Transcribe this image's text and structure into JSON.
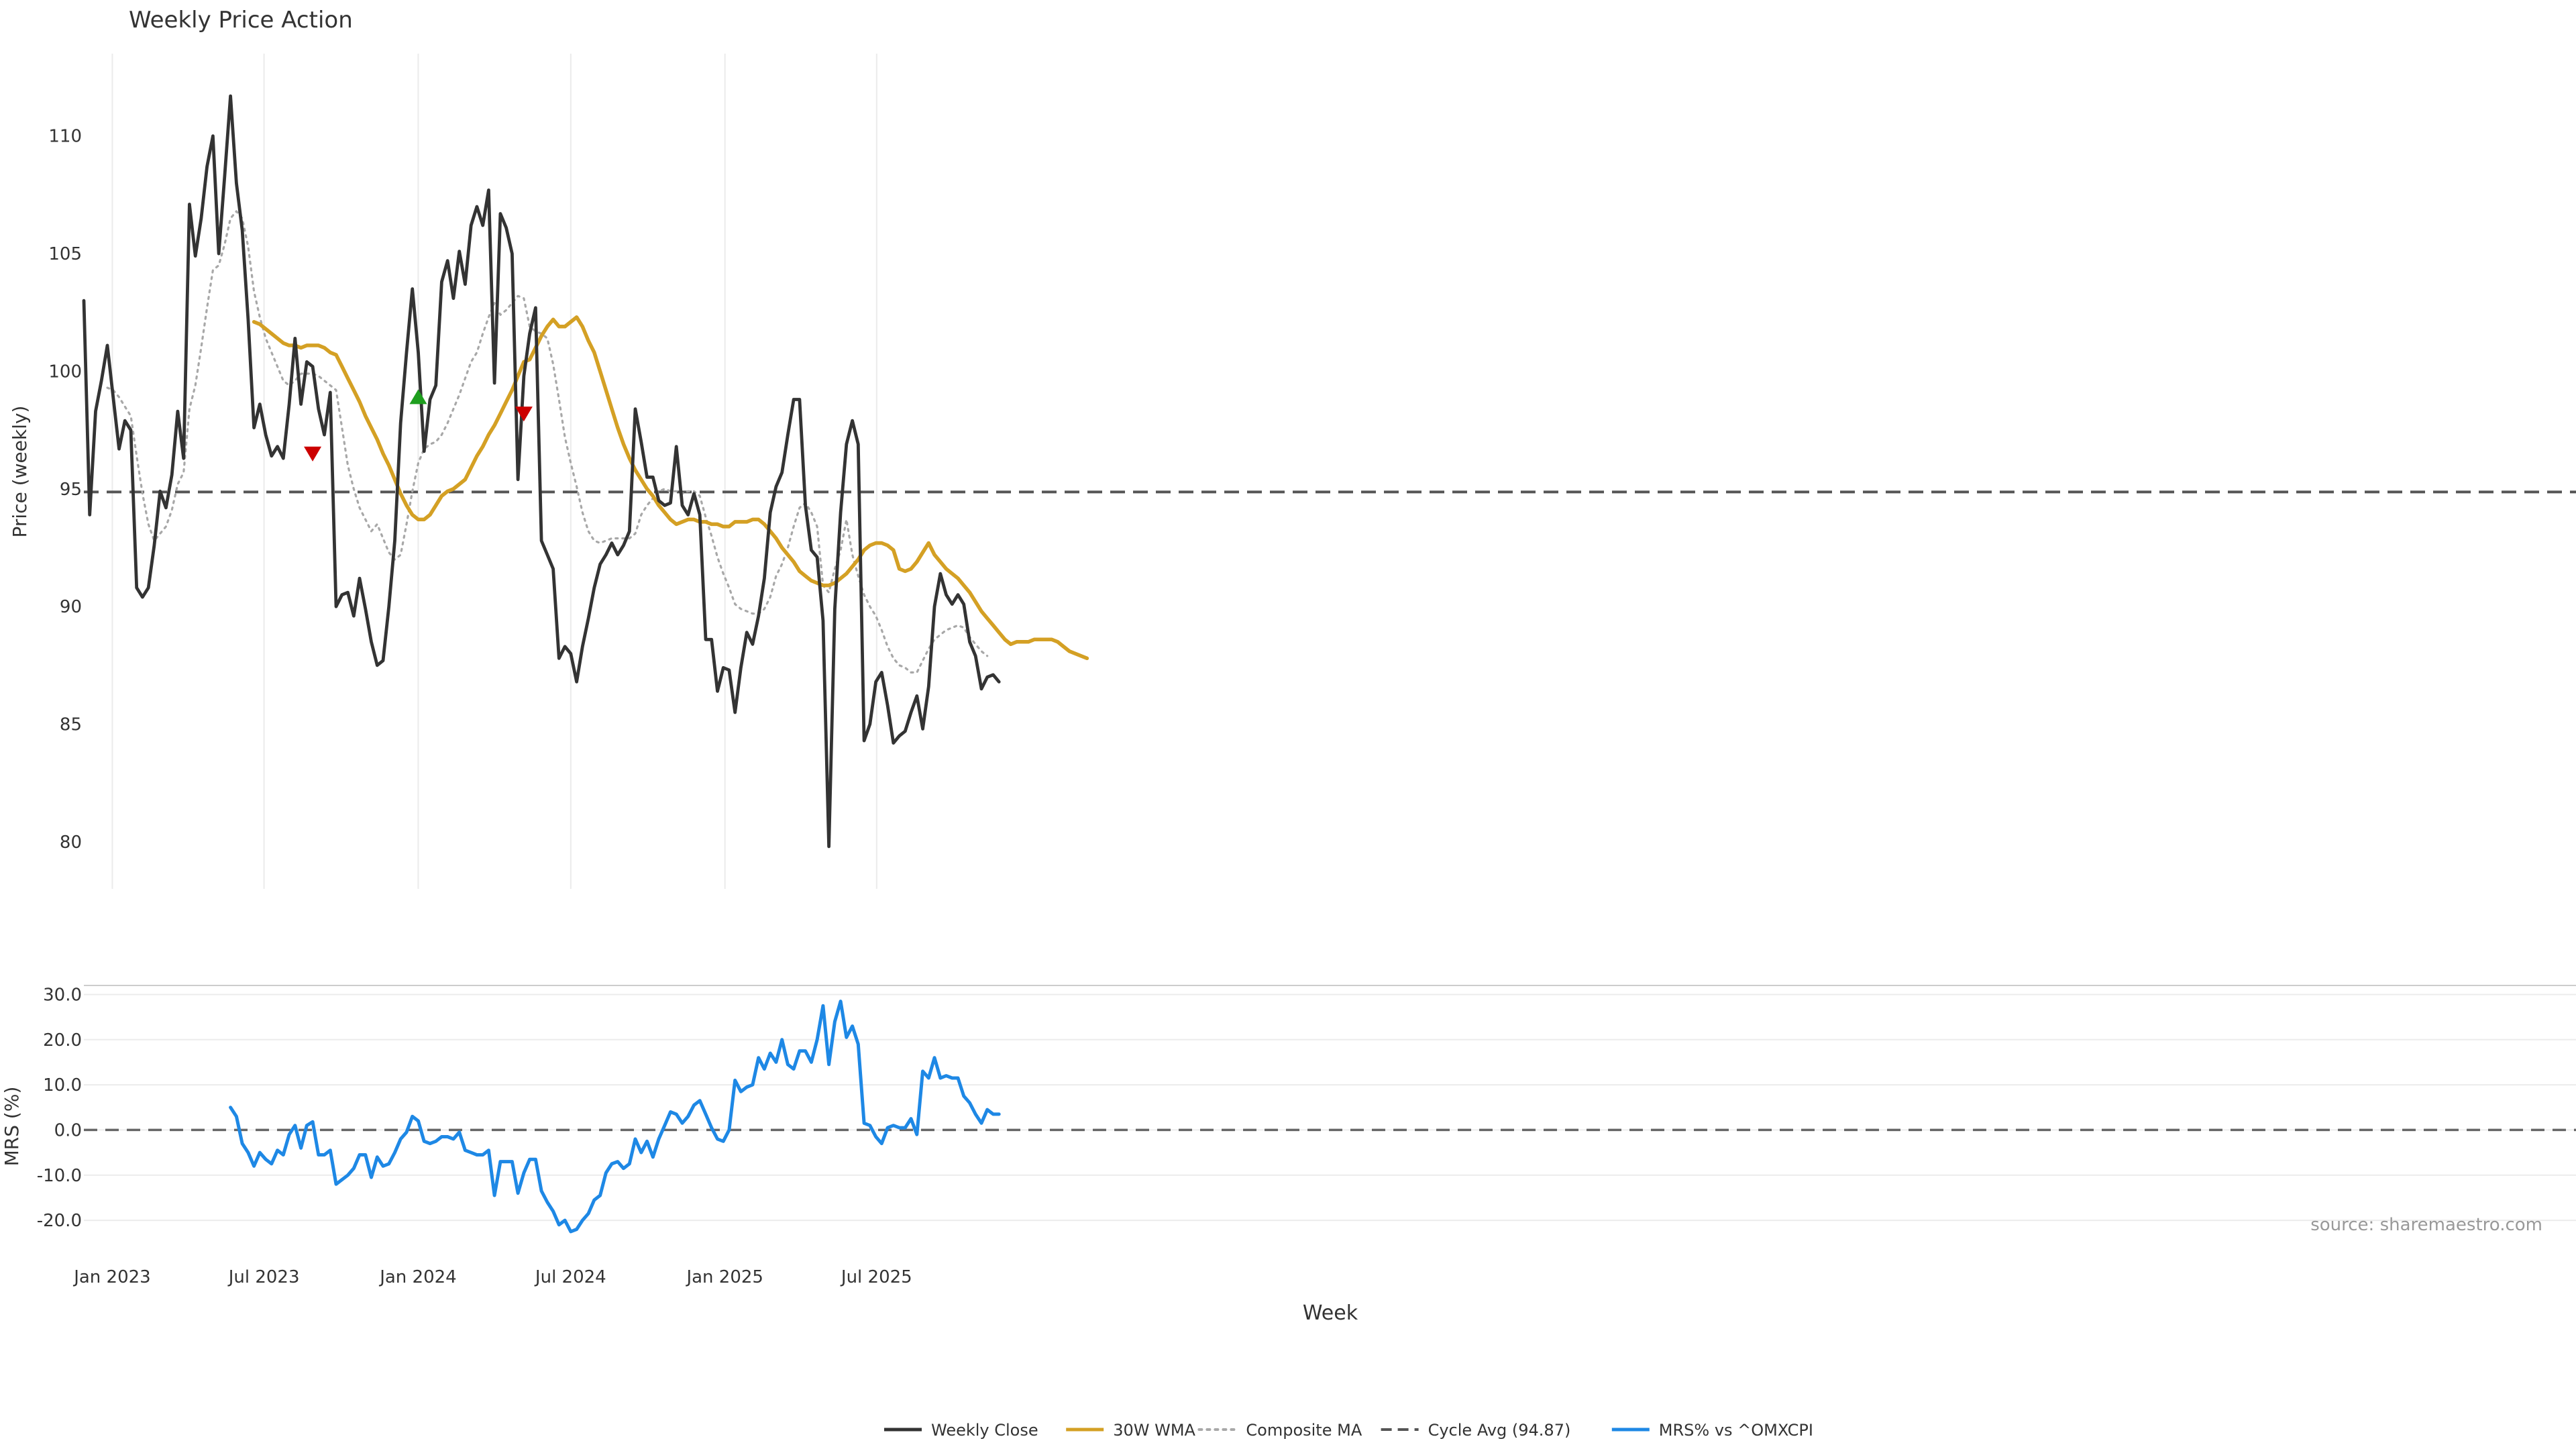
{
  "chart_data": [
    {
      "type": "line",
      "title": "Weekly Price Action",
      "ylabel": "Price (weekly)",
      "xlabel": "",
      "ylim": [
        78,
        113.5
      ],
      "y_ticks": [
        80,
        85,
        90,
        95,
        100,
        105,
        110
      ],
      "grid": "vertical",
      "x_start": "2022-11-28",
      "x_interval_days": 7,
      "reference_line": {
        "name": "Cycle Avg (94.87)",
        "value": 94.87
      },
      "series": [
        {
          "name": "Weekly Close",
          "color": "#333333",
          "values": [
            103.0,
            93.9,
            98.3,
            99.6,
            101.1,
            98.9,
            96.7,
            97.9,
            97.5,
            90.8,
            90.4,
            90.8,
            92.6,
            94.9,
            94.2,
            95.6,
            98.3,
            96.3,
            107.1,
            104.9,
            106.5,
            108.7,
            110.0,
            105.0,
            108.3,
            111.7,
            108.0,
            106.0,
            102.2,
            97.6,
            98.6,
            97.3,
            96.4,
            96.8,
            96.3,
            98.6,
            101.4,
            98.6,
            100.4,
            100.2,
            98.4,
            97.3,
            99.1,
            90.0,
            90.5,
            90.6,
            89.6,
            91.2,
            89.9,
            88.5,
            87.5,
            87.7,
            90.0,
            92.8,
            97.8,
            100.8,
            103.5,
            100.8,
            96.6,
            98.8,
            99.4,
            103.8,
            104.7,
            103.1,
            105.1,
            103.7,
            106.2,
            107.0,
            106.2,
            107.7,
            99.5,
            106.7,
            106.1,
            105.0,
            95.4,
            99.8,
            101.6,
            102.7,
            92.8,
            92.2,
            91.6,
            87.8,
            88.3,
            88.0,
            86.8,
            88.3,
            89.5,
            90.8,
            91.8,
            92.2,
            92.7,
            92.2,
            92.6,
            93.2,
            98.4,
            97.0,
            95.5,
            95.5,
            94.5,
            94.3,
            94.4,
            96.8,
            94.3,
            93.9,
            94.8,
            93.9,
            88.6,
            88.6,
            86.4,
            87.4,
            87.3,
            85.5,
            87.4,
            88.9,
            88.4,
            89.6,
            91.2,
            94.0,
            95.1,
            95.7,
            97.3,
            98.8,
            98.8,
            94.3,
            92.4,
            92.1,
            89.4,
            79.8,
            89.9,
            94.0,
            96.9,
            97.9,
            96.9,
            84.3,
            85.0,
            86.8,
            87.2,
            85.8,
            84.2,
            84.5,
            84.7,
            85.5,
            86.2,
            84.8,
            86.6,
            90.0,
            91.4,
            90.5,
            90.1,
            90.5,
            90.1,
            88.5,
            87.9,
            86.5,
            87.0,
            87.1,
            86.8
          ]
        },
        {
          "name": "30W WMA",
          "color": "#D4A024",
          "start_index": 29,
          "values": [
            102.1,
            102.0,
            101.8,
            101.6,
            101.4,
            101.2,
            101.1,
            101.1,
            101.0,
            101.1,
            101.1,
            101.1,
            101.0,
            100.8,
            100.7,
            100.2,
            99.7,
            99.2,
            98.7,
            98.1,
            97.6,
            97.1,
            96.5,
            96.0,
            95.4,
            94.8,
            94.3,
            93.9,
            93.7,
            93.7,
            93.9,
            94.3,
            94.7,
            94.9,
            95.0,
            95.2,
            95.4,
            95.9,
            96.4,
            96.8,
            97.3,
            97.7,
            98.2,
            98.7,
            99.2,
            99.8,
            100.4,
            100.5,
            101.0,
            101.5,
            101.9,
            102.2,
            101.9,
            101.9,
            102.1,
            102.3,
            101.9,
            101.3,
            100.8,
            100.0,
            99.2,
            98.4,
            97.6,
            96.9,
            96.3,
            95.8,
            95.4,
            95.0,
            94.7,
            94.3,
            94.0,
            93.7,
            93.5,
            93.6,
            93.7,
            93.7,
            93.6,
            93.6,
            93.5,
            93.5,
            93.4,
            93.4,
            93.6,
            93.6,
            93.6,
            93.7,
            93.7,
            93.5,
            93.2,
            92.9,
            92.5,
            92.2,
            91.9,
            91.5,
            91.3,
            91.1,
            91.0,
            90.9,
            90.9,
            91.0,
            91.2,
            91.4,
            91.7,
            92.0,
            92.4,
            92.6,
            92.7,
            92.7,
            92.6,
            92.4,
            91.6,
            91.5,
            91.6,
            91.9,
            92.3,
            92.7,
            92.2,
            91.9,
            91.6,
            91.4,
            91.2,
            90.9,
            90.6,
            90.2,
            89.8,
            89.5,
            89.2,
            88.9,
            88.6,
            88.4,
            88.5,
            88.5,
            88.5,
            88.6,
            88.6,
            88.6,
            88.6,
            88.5,
            88.3,
            88.1,
            88.0,
            87.9,
            87.8
          ]
        },
        {
          "name": "Composite MA",
          "color": "#A8A8A8",
          "start_index": 4,
          "values": [
            99.3,
            99.2,
            98.9,
            98.5,
            98.1,
            96.4,
            94.8,
            93.5,
            92.8,
            93.1,
            93.4,
            94.1,
            95.2,
            95.7,
            98.4,
            99.4,
            101.0,
            102.7,
            104.3,
            104.5,
            105.4,
            106.5,
            106.8,
            106.5,
            105.3,
            103.4,
            102.3,
            101.4,
            100.8,
            100.2,
            99.6,
            99.4,
            99.6,
            99.9,
            99.9,
            99.9,
            99.8,
            99.6,
            99.4,
            99.2,
            97.6,
            96.0,
            95.0,
            94.2,
            93.7,
            93.2,
            93.5,
            92.9,
            92.3,
            92.0,
            92.2,
            93.5,
            94.9,
            96.1,
            96.7,
            96.9,
            97.0,
            97.3,
            97.8,
            98.4,
            99.0,
            99.7,
            100.4,
            100.8,
            101.6,
            102.3,
            102.9,
            102.4,
            102.6,
            102.9,
            103.2,
            103.1,
            101.9,
            101.7,
            101.6,
            101.4,
            100.3,
            98.8,
            97.2,
            96.1,
            95.1,
            94.0,
            93.2,
            92.8,
            92.7,
            92.8,
            92.9,
            92.9,
            92.9,
            92.9,
            93.1,
            93.9,
            94.3,
            94.6,
            94.9,
            95.0,
            94.9,
            94.9,
            94.8,
            94.9,
            94.9,
            94.7,
            93.8,
            93.0,
            92.1,
            91.4,
            90.8,
            90.1,
            89.9,
            89.8,
            89.7,
            89.7,
            89.9,
            90.4,
            91.3,
            91.8,
            92.5,
            93.4,
            94.2,
            94.4,
            94.0,
            93.4,
            90.9,
            90.6,
            91.6,
            92.4,
            93.7,
            92.2,
            91.3,
            90.5,
            90.0,
            89.6,
            89.0,
            88.3,
            87.8,
            87.5,
            87.4,
            87.2,
            87.2,
            87.7,
            88.2,
            88.6,
            88.8,
            89.0,
            89.1,
            89.2,
            89.1,
            88.7,
            88.4,
            88.1,
            87.9
          ]
        },
        {
          "name": "Cycle Avg (94.87)",
          "color": "#555555",
          "constant": 94.87
        }
      ],
      "markers": [
        {
          "type": "sell",
          "date": "2023-08-28",
          "value": 96.5,
          "color": "#CC0000"
        },
        {
          "type": "buy",
          "date": "2024-01-01",
          "value": 98.9,
          "color": "#1E9E1E"
        },
        {
          "type": "sell",
          "date": "2024-05-06",
          "value": 98.2,
          "color": "#CC0000"
        }
      ]
    },
    {
      "type": "line",
      "title": "",
      "ylabel": "MRS (%)",
      "xlabel": "Week",
      "ylim": [
        -24,
        32
      ],
      "y_ticks": [
        "30.0",
        "20.0",
        "10.0",
        "0.0",
        "-10.0",
        "-20.0"
      ],
      "y_tick_values": [
        30,
        20,
        10,
        0,
        -10,
        -20
      ],
      "x_ticks": [
        "Jan 2023",
        "Jul 2023",
        "Jan 2024",
        "Jul 2024",
        "Jan 2025",
        "Jul 2025"
      ],
      "x_tick_dates": [
        "2023-01-01",
        "2023-07-01",
        "2024-01-01",
        "2024-07-01",
        "2025-01-01",
        "2025-07-01"
      ],
      "reference_line": {
        "value": 0
      },
      "grid": "horizontal",
      "series": [
        {
          "name": "MRS% vs ^OMXCPI",
          "color": "#1E88E5",
          "start_index": 25,
          "values": [
            5.0,
            3.0,
            -3.0,
            -5.0,
            -8.0,
            -5.0,
            -6.5,
            -7.5,
            -4.5,
            -5.5,
            -1.0,
            1.0,
            -4.0,
            1.0,
            1.8,
            -5.5,
            -5.5,
            -4.5,
            -12.0,
            -11.0,
            -10.0,
            -8.5,
            -5.5,
            -5.5,
            -10.5,
            -6.0,
            -8.0,
            -7.5,
            -5.0,
            -2.0,
            -0.5,
            3.0,
            2.0,
            -2.5,
            -3.0,
            -2.5,
            -1.5,
            -1.5,
            -2.0,
            -0.5,
            -4.5,
            -5.0,
            -5.5,
            -5.5,
            -4.5,
            -14.5,
            -7.0,
            -7.0,
            -7.0,
            -14.0,
            -9.5,
            -6.5,
            -6.5,
            -13.5,
            -16.0,
            -18.0,
            -21.0,
            -20.0,
            -22.5,
            -22.0,
            -20.0,
            -18.5,
            -15.5,
            -14.5,
            -9.5,
            -7.5,
            -7.0,
            -8.5,
            -7.5,
            -2.0,
            -5.0,
            -2.5,
            -6.0,
            -2.0,
            1.0,
            4.0,
            3.5,
            1.5,
            3.0,
            5.5,
            6.5,
            3.5,
            0.5,
            -2.0,
            -2.5,
            0.0,
            11.0,
            8.5,
            9.5,
            10.0,
            16.0,
            13.5,
            17.0,
            15.0,
            20.0,
            14.5,
            13.5,
            17.5,
            17.5,
            15.0,
            20.0,
            27.5,
            14.5,
            24.0,
            28.5,
            20.5,
            23.0,
            19.0,
            1.5,
            1.0,
            -1.5,
            -3.0,
            0.5,
            1.0,
            0.5,
            0.5,
            2.5,
            -1.0,
            13.0,
            11.5,
            16.0,
            11.5,
            12.0,
            11.5,
            11.5,
            7.5,
            6.0,
            3.5,
            1.5,
            4.5,
            3.5,
            3.5
          ]
        }
      ]
    }
  ],
  "legend": {
    "items": [
      {
        "label": "Weekly Close",
        "color": "#333333",
        "style": "solid"
      },
      {
        "label": "30W WMA",
        "color": "#D4A024",
        "style": "solid"
      },
      {
        "label": "Composite MA",
        "color": "#A8A8A8",
        "style": "dotted"
      },
      {
        "label": "Cycle Avg (94.87)",
        "color": "#555555",
        "style": "dashed"
      },
      {
        "label": "MRS% vs ^OMXCPI",
        "color": "#1E88E5",
        "style": "solid"
      }
    ],
    "placement": "bottom-center"
  },
  "source_note": "source: sharemaestro.com"
}
